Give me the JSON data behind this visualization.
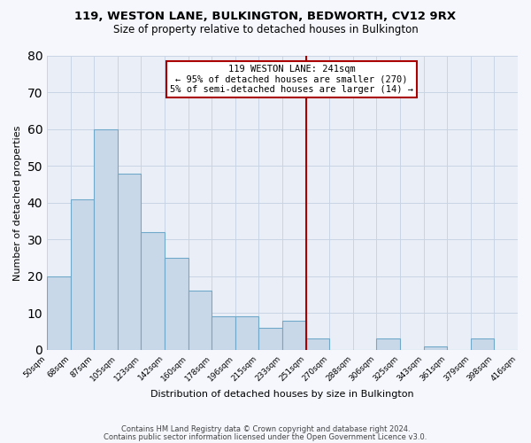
{
  "title": "119, WESTON LANE, BULKINGTON, BEDWORTH, CV12 9RX",
  "subtitle": "Size of property relative to detached houses in Bulkington",
  "xlabel": "Distribution of detached houses by size in Bulkington",
  "ylabel": "Number of detached properties",
  "bin_labels": [
    "50sqm",
    "68sqm",
    "87sqm",
    "105sqm",
    "123sqm",
    "142sqm",
    "160sqm",
    "178sqm",
    "196sqm",
    "215sqm",
    "233sqm",
    "251sqm",
    "270sqm",
    "288sqm",
    "306sqm",
    "325sqm",
    "343sqm",
    "361sqm",
    "379sqm",
    "398sqm",
    "416sqm"
  ],
  "bar_heights": [
    20,
    41,
    60,
    48,
    32,
    25,
    16,
    9,
    9,
    6,
    8,
    3,
    0,
    0,
    3,
    0,
    1,
    0,
    3,
    0
  ],
  "bar_color": "#c8d8e8",
  "bar_edge_color": "#6fa8c8",
  "vline_color": "#aa0000",
  "annotation_text": "119 WESTON LANE: 241sqm\n← 95% of detached houses are smaller (270)\n5% of semi-detached houses are larger (14) →",
  "annotation_box_color": "#aa0000",
  "ylim": [
    0,
    80
  ],
  "yticks": [
    0,
    10,
    20,
    30,
    40,
    50,
    60,
    70,
    80
  ],
  "grid_color": "#c8d4e4",
  "background_color": "#eaeff7",
  "fig_background": "#f5f7fc",
  "footer1": "Contains HM Land Registry data © Crown copyright and database right 2024.",
  "footer2": "Contains public sector information licensed under the Open Government Licence v3.0."
}
